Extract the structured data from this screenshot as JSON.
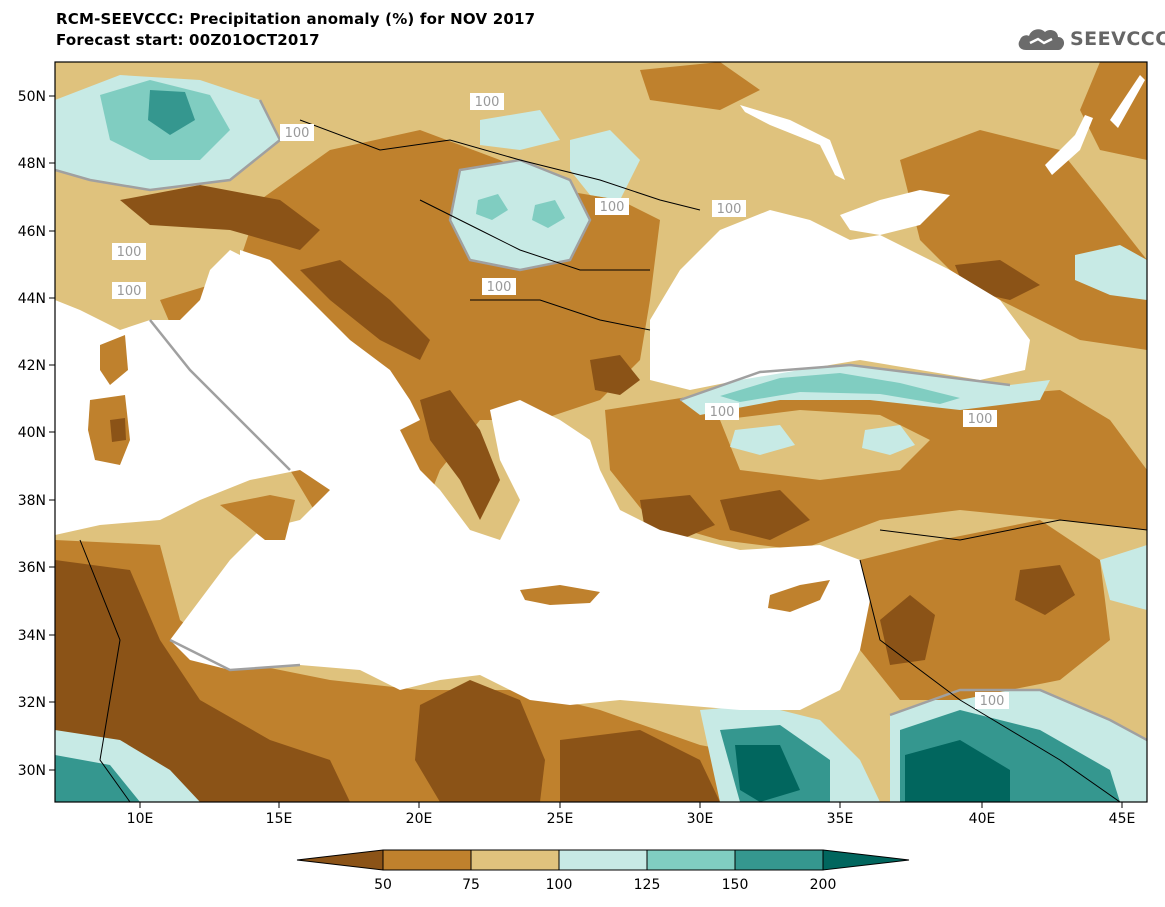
{
  "header": {
    "title_line1": "RCM-SEEVCCC: Precipitation anomaly (%) for NOV 2017",
    "title_line2": "Forecast start: 00Z01OCT2017",
    "logo_text": "SEEVCCC"
  },
  "colors": {
    "lt50": "#8b5317",
    "c50_75": "#bf812d",
    "c75_100": "#dfc27d",
    "c100_125": "#c7eae5",
    "c125_150": "#80cdc1",
    "c150_200": "#35978f",
    "gt200": "#01665e",
    "contour_100": "#a0a0a0",
    "sea": "#ffffff"
  },
  "map": {
    "lon_ticks": [
      "10E",
      "15E",
      "20E",
      "25E",
      "30E",
      "35E",
      "40E",
      "45E"
    ],
    "lat_ticks": [
      "50N",
      "48N",
      "46N",
      "44N",
      "42N",
      "40N",
      "38N",
      "36N",
      "34N",
      "32N",
      "30N"
    ],
    "contour_labels": [
      "100",
      "100",
      "100",
      "100",
      "100",
      "100",
      "100",
      "100",
      "100",
      "100"
    ]
  },
  "colorbar": {
    "labels": [
      "50",
      "75",
      "100",
      "125",
      "150",
      "200"
    ]
  }
}
